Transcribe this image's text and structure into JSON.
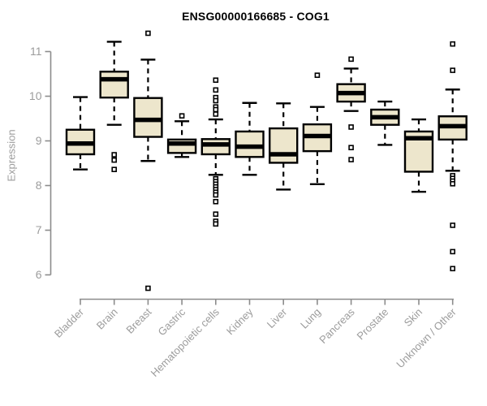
{
  "chart_data": {
    "type": "boxplot",
    "title": "ENSG00000166685 - COG1",
    "ylabel": "Expression",
    "xlabel": "",
    "ylim": [
      6,
      11
    ],
    "yticks": [
      6,
      7,
      8,
      9,
      10,
      11
    ],
    "grid": false,
    "legend": "none",
    "categories": [
      "Bladder",
      "Brain",
      "Breast",
      "Gastric",
      "Hematopoietic cells",
      "Kidney",
      "Liver",
      "Lung",
      "Pancreas",
      "Prostate",
      "Skin",
      "Unknown / Other"
    ],
    "series": [
      {
        "name": "Bladder",
        "whisker_low": 8.36,
        "q1": 8.7,
        "median": 8.94,
        "q3": 9.25,
        "whisker_high": 9.98,
        "outliers": []
      },
      {
        "name": "Brain",
        "whisker_low": 9.36,
        "q1": 9.97,
        "median": 10.38,
        "q3": 10.55,
        "whisker_high": 11.22,
        "outliers": [
          8.69,
          8.57,
          8.36
        ]
      },
      {
        "name": "Breast",
        "whisker_low": 8.55,
        "q1": 9.09,
        "median": 9.47,
        "q3": 9.96,
        "whisker_high": 10.82,
        "outliers": [
          11.41,
          5.7
        ]
      },
      {
        "name": "Gastric",
        "whisker_low": 8.64,
        "q1": 8.73,
        "median": 8.94,
        "q3": 9.03,
        "whisker_high": 9.44,
        "outliers": [
          9.56
        ]
      },
      {
        "name": "Hematopoietic cells",
        "whisker_low": 8.24,
        "q1": 8.7,
        "median": 8.92,
        "q3": 9.04,
        "whisker_high": 9.48,
        "outliers": [
          10.36,
          10.14,
          9.97,
          9.9,
          9.76,
          9.7,
          9.6,
          8.15,
          8.09,
          8.03,
          7.97,
          7.91,
          7.85,
          7.79,
          7.64,
          7.36,
          7.2,
          7.14
        ]
      },
      {
        "name": "Kidney",
        "whisker_low": 8.24,
        "q1": 8.64,
        "median": 8.87,
        "q3": 9.21,
        "whisker_high": 9.85,
        "outliers": []
      },
      {
        "name": "Liver",
        "whisker_low": 7.91,
        "q1": 8.51,
        "median": 8.7,
        "q3": 9.28,
        "whisker_high": 9.84,
        "outliers": []
      },
      {
        "name": "Lung",
        "whisker_low": 8.03,
        "q1": 8.77,
        "median": 9.11,
        "q3": 9.37,
        "whisker_high": 9.76,
        "outliers": [
          10.47
        ]
      },
      {
        "name": "Pancreas",
        "whisker_low": 9.67,
        "q1": 9.88,
        "median": 10.07,
        "q3": 10.27,
        "whisker_high": 10.62,
        "outliers": [
          10.83,
          9.31,
          8.85,
          8.58
        ]
      },
      {
        "name": "Prostate",
        "whisker_low": 8.91,
        "q1": 9.36,
        "median": 9.53,
        "q3": 9.7,
        "whisker_high": 9.88,
        "outliers": []
      },
      {
        "name": "Skin",
        "whisker_low": 7.86,
        "q1": 8.31,
        "median": 9.06,
        "q3": 9.21,
        "whisker_high": 9.48,
        "outliers": []
      },
      {
        "name": "Unknown / Other",
        "whisker_low": 8.33,
        "q1": 9.03,
        "median": 9.33,
        "q3": 9.55,
        "whisker_high": 10.15,
        "outliers": [
          11.17,
          10.58,
          8.22,
          8.16,
          8.1,
          8.04,
          7.11,
          6.52,
          6.14
        ]
      }
    ],
    "colors": {
      "box_fill": "#ede6cc",
      "box_border": "#000000",
      "median": "#000000",
      "whisker": "#000000",
      "outlier": "#000000",
      "axis": "#8c8c8c",
      "tick_label": "#9c9c9c",
      "title": "#000000"
    }
  }
}
